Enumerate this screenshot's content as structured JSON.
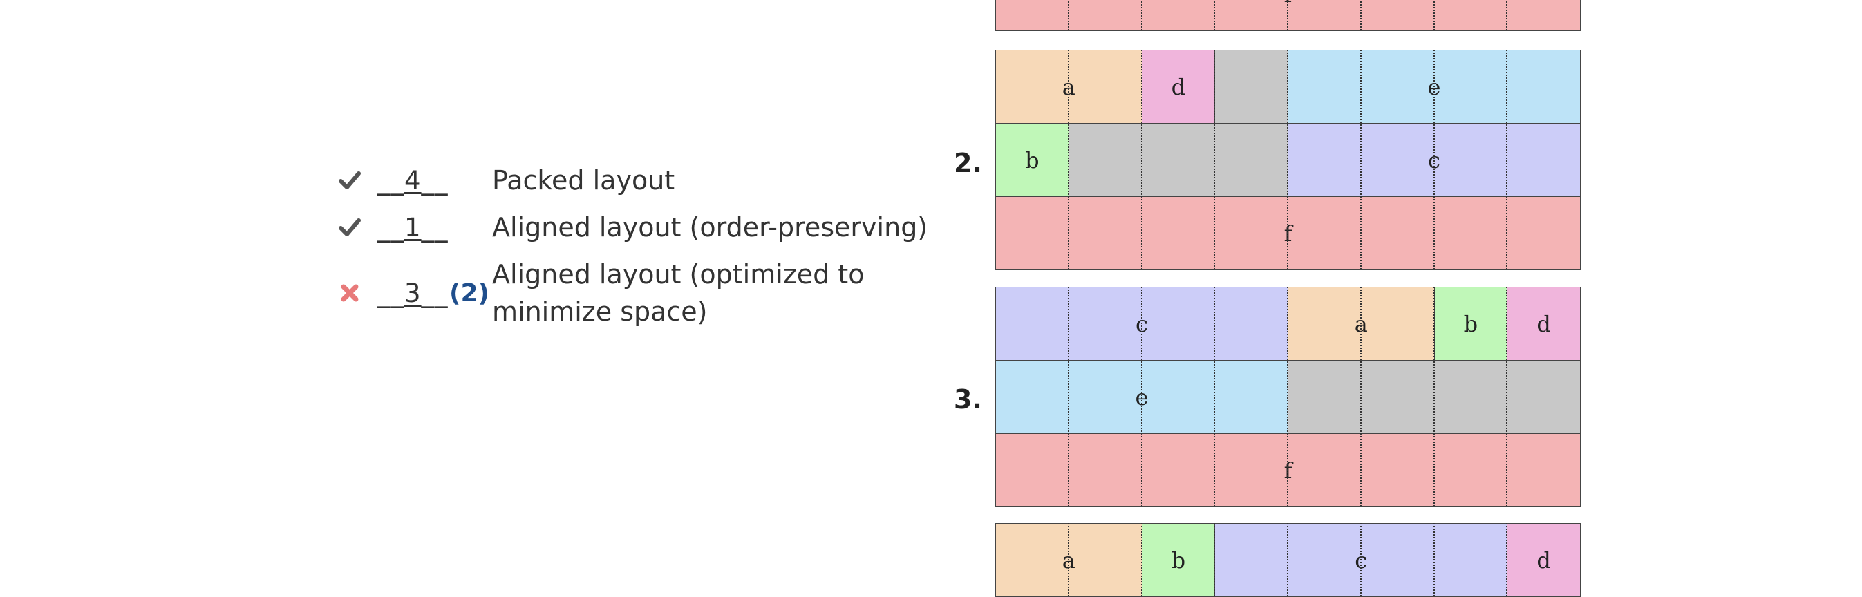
{
  "colors": {
    "a": "#f7d9b8",
    "b": "#c0f7b8",
    "c": "#cccdf8",
    "d": "#f0b5dc",
    "e": "#bde3f7",
    "f": "#f4b4b5",
    "empty": "#c8c8c8",
    "check": "#555555",
    "cross": "#e87a7a",
    "correction": "#1f4e8c"
  },
  "answers": [
    {
      "mark": "check-icon",
      "blank_prefix": "__",
      "number": "4",
      "blank_suffix": "__",
      "correction": "",
      "label": "Packed layout"
    },
    {
      "mark": "check-icon",
      "blank_prefix": "__",
      "number": "1",
      "blank_suffix": "__",
      "correction": "",
      "label": "Aligned layout (order-preserving)"
    },
    {
      "mark": "cross-icon",
      "blank_prefix": "__",
      "number": "3",
      "blank_suffix": "__",
      "correction": "(2)",
      "label": "Aligned layout (optimized to minimize space)"
    }
  ],
  "diagrams": [
    {
      "number": "",
      "cells": [
        {
          "label": "f",
          "color": "f",
          "col": 0,
          "row": 0,
          "w": 8,
          "h": 1
        }
      ]
    },
    {
      "number": "2.",
      "cells": [
        {
          "label": "a",
          "color": "a",
          "col": 0,
          "row": 0,
          "w": 2,
          "h": 1
        },
        {
          "label": "d",
          "color": "d",
          "col": 2,
          "row": 0,
          "w": 1,
          "h": 1
        },
        {
          "label": "",
          "color": "empty",
          "col": 3,
          "row": 0,
          "w": 1,
          "h": 1
        },
        {
          "label": "e",
          "color": "e",
          "col": 4,
          "row": 0,
          "w": 4,
          "h": 1
        },
        {
          "label": "b",
          "color": "b",
          "col": 0,
          "row": 1,
          "w": 1,
          "h": 1
        },
        {
          "label": "",
          "color": "empty",
          "col": 1,
          "row": 1,
          "w": 3,
          "h": 1
        },
        {
          "label": "c",
          "color": "c",
          "col": 4,
          "row": 1,
          "w": 4,
          "h": 1
        },
        {
          "label": "f",
          "color": "f",
          "col": 0,
          "row": 2,
          "w": 8,
          "h": 1
        }
      ]
    },
    {
      "number": "3.",
      "cells": [
        {
          "label": "c",
          "color": "c",
          "col": 0,
          "row": 0,
          "w": 4,
          "h": 1
        },
        {
          "label": "a",
          "color": "a",
          "col": 4,
          "row": 0,
          "w": 2,
          "h": 1
        },
        {
          "label": "b",
          "color": "b",
          "col": 6,
          "row": 0,
          "w": 1,
          "h": 1
        },
        {
          "label": "d",
          "color": "d",
          "col": 7,
          "row": 0,
          "w": 1,
          "h": 1
        },
        {
          "label": "e",
          "color": "e",
          "col": 0,
          "row": 1,
          "w": 4,
          "h": 1
        },
        {
          "label": "",
          "color": "empty",
          "col": 4,
          "row": 1,
          "w": 4,
          "h": 1
        },
        {
          "label": "f",
          "color": "f",
          "col": 0,
          "row": 2,
          "w": 8,
          "h": 1
        }
      ]
    },
    {
      "number": "",
      "cells": [
        {
          "label": "a",
          "color": "a",
          "col": 0,
          "row": 0,
          "w": 2,
          "h": 1
        },
        {
          "label": "b",
          "color": "b",
          "col": 2,
          "row": 0,
          "w": 1,
          "h": 1
        },
        {
          "label": "c",
          "color": "c",
          "col": 3,
          "row": 0,
          "w": 4,
          "h": 1
        },
        {
          "label": "d",
          "color": "d",
          "col": 7,
          "row": 0,
          "w": 1,
          "h": 1
        }
      ]
    }
  ]
}
